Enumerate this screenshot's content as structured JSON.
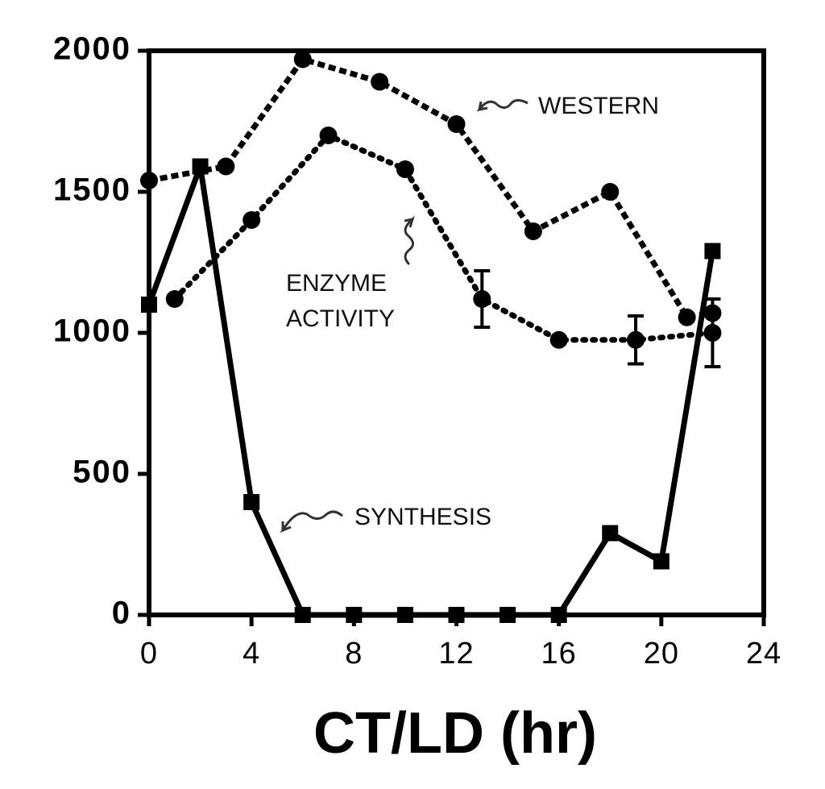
{
  "chart_data": {
    "type": "line",
    "xlabel": "CT/LD  (hr)",
    "xlim": [
      0,
      24
    ],
    "xticks": [
      0,
      4,
      8,
      12,
      16,
      20,
      24
    ],
    "ylim": [
      0,
      2000
    ],
    "yticks": [
      0,
      500,
      1000,
      1500,
      2000
    ],
    "series": [
      {
        "name": "WESTERN",
        "color": "#000000",
        "style": "dashed",
        "marker": "circle",
        "x": [
          0,
          3,
          6,
          9,
          12,
          15,
          18,
          21,
          22
        ],
        "values": [
          1540,
          1590,
          1970,
          1890,
          1740,
          1360,
          1500,
          1055,
          1070
        ]
      },
      {
        "name": "ENZYME ACTIVITY",
        "color": "#000000",
        "style": "dotted",
        "marker": "circle",
        "x": [
          1,
          4,
          7,
          10,
          13,
          16,
          19,
          22
        ],
        "values": [
          1120,
          1400,
          1700,
          1580,
          1120,
          975,
          975,
          1000
        ],
        "errors": [
          null,
          null,
          null,
          null,
          100,
          null,
          85,
          120
        ]
      },
      {
        "name": "SYNTHESIS",
        "color": "#000000",
        "style": "solid",
        "marker": "square",
        "x": [
          0,
          2,
          4,
          6,
          8,
          10,
          12,
          14,
          16,
          18,
          20,
          22
        ],
        "values": [
          1100,
          1590,
          400,
          0,
          0,
          0,
          0,
          0,
          0,
          290,
          190,
          1290
        ]
      }
    ]
  }
}
